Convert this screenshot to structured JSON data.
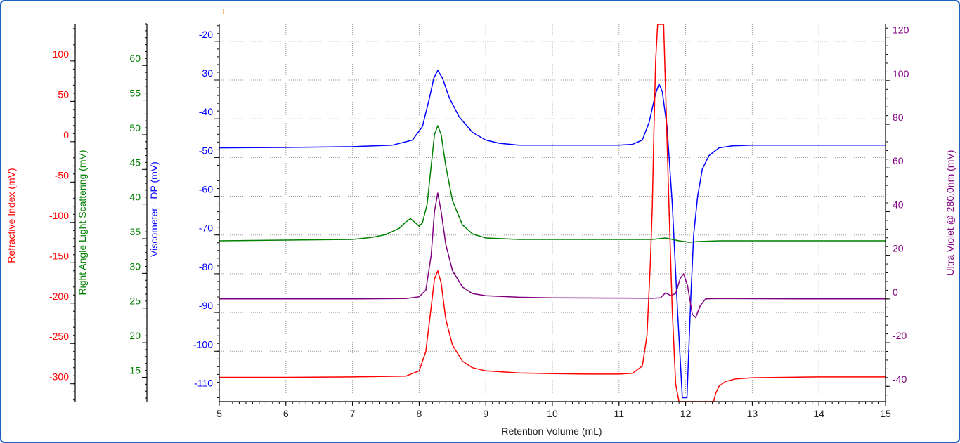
{
  "colors": {
    "refractive_index": "#ff0000",
    "right_angle_light_scattering": "#008000",
    "viscometer": "#0000ff",
    "ultra_violet": "#800080",
    "frame": "#1f5fbf",
    "grid": "#9a9a9a"
  },
  "chart_data": {
    "type": "line",
    "title": "",
    "grid": true,
    "xlabel": "Retention Volume (mL)",
    "xlim": [
      5,
      15
    ],
    "x_ticks": [
      5,
      6,
      7,
      8,
      9,
      10,
      11,
      12,
      13,
      14,
      15
    ],
    "axes": {
      "refractive_index": {
        "label": "Refractive Index (mV)",
        "ticks": [
          100,
          50,
          0,
          -50,
          -100,
          -150,
          -200,
          -250,
          -300
        ],
        "ylim": [
          -322,
          146
        ]
      },
      "right_angle_light_scattering": {
        "label": "Right Angle Light Scattering (mV)",
        "ticks": [
          60,
          55,
          50,
          45,
          40,
          35,
          30,
          25,
          20,
          15
        ],
        "ylim": [
          11.5,
          66
        ]
      },
      "viscometer": {
        "label": "Viscometer - DP (mV)",
        "ticks": [
          -20,
          -30,
          -40,
          -50,
          -60,
          -70,
          -80,
          -90,
          -100,
          -110
        ],
        "ylim": [
          -113,
          -15.5
        ]
      },
      "ultra_violet": {
        "label": "Ultra Violet @ 280.0nm (mV)",
        "ticks": [
          120,
          100,
          80,
          60,
          40,
          20,
          0,
          -20,
          -40
        ],
        "ylim": [
          -47,
          126
        ]
      }
    },
    "series": [
      {
        "key": "viscometer",
        "x": [
          5.0,
          6.0,
          7.0,
          7.6,
          7.9,
          8.05,
          8.15,
          8.22,
          8.28,
          8.35,
          8.45,
          8.6,
          8.8,
          9.0,
          9.2,
          9.5,
          10.0,
          10.5,
          11.0,
          11.2,
          11.35,
          11.45,
          11.55,
          11.6,
          11.65,
          11.72,
          11.8,
          11.88,
          11.95,
          12.02,
          12.08,
          12.12,
          12.18,
          12.25,
          12.35,
          12.5,
          12.7,
          13.0,
          14.0,
          15.0
        ],
        "y": [
          -47.5,
          -47.4,
          -47.2,
          -46.8,
          -45.5,
          -42.0,
          -35.0,
          -29.5,
          -27.5,
          -29.5,
          -34.5,
          -39.5,
          -43.5,
          -45.5,
          -46.3,
          -46.8,
          -46.8,
          -46.8,
          -46.8,
          -46.6,
          -45.5,
          -41.0,
          -33.5,
          -31.0,
          -33.0,
          -42.0,
          -62.0,
          -90.0,
          -112.0,
          -112.0,
          -85.0,
          -70.0,
          -60.0,
          -53.0,
          -49.5,
          -47.5,
          -47.0,
          -46.8,
          -46.8,
          -46.8
        ]
      },
      {
        "key": "right_angle_light_scattering",
        "x": [
          5.0,
          6.0,
          7.0,
          7.3,
          7.5,
          7.7,
          7.8,
          7.87,
          7.93,
          8.0,
          8.05,
          8.12,
          8.18,
          8.23,
          8.28,
          8.33,
          8.4,
          8.5,
          8.65,
          8.8,
          9.0,
          9.5,
          10.0,
          11.0,
          11.5,
          11.7,
          11.9,
          12.05,
          12.2,
          12.5,
          13.0,
          14.0,
          15.0
        ],
        "y": [
          34.7,
          34.8,
          34.9,
          35.2,
          35.6,
          36.5,
          37.4,
          37.9,
          37.4,
          36.8,
          37.3,
          40.0,
          45.5,
          50.0,
          51.3,
          50.0,
          45.5,
          40.5,
          37.0,
          35.7,
          35.1,
          34.9,
          34.9,
          34.9,
          34.9,
          35.1,
          34.7,
          34.5,
          34.6,
          34.7,
          34.7,
          34.7,
          34.7
        ]
      },
      {
        "key": "ultra_violet",
        "x": [
          5.0,
          6.0,
          7.0,
          7.8,
          8.0,
          8.1,
          8.18,
          8.23,
          8.28,
          8.33,
          8.4,
          8.5,
          8.65,
          8.8,
          9.0,
          9.5,
          10.0,
          11.0,
          11.5,
          11.62,
          11.7,
          11.78,
          11.85,
          11.92,
          11.97,
          12.03,
          12.1,
          12.15,
          12.22,
          12.3,
          12.5,
          13.0,
          14.0,
          15.0
        ],
        "y": [
          0.0,
          0.0,
          0.0,
          0.2,
          1.0,
          4.0,
          20.0,
          40.0,
          48.5,
          40.0,
          25.0,
          13.0,
          5.5,
          2.5,
          1.5,
          0.8,
          0.5,
          0.4,
          0.3,
          0.5,
          2.8,
          1.5,
          2.5,
          9.5,
          11.5,
          6.0,
          -7.0,
          -8.5,
          -3.0,
          0.0,
          0.2,
          0.1,
          0.0,
          0.0
        ]
      },
      {
        "key": "refractive_index",
        "x": [
          5.0,
          6.0,
          7.0,
          7.8,
          8.0,
          8.1,
          8.18,
          8.23,
          8.28,
          8.33,
          8.4,
          8.5,
          8.65,
          8.8,
          9.0,
          9.5,
          10.0,
          10.5,
          11.0,
          11.2,
          11.35,
          11.42,
          11.47,
          11.5,
          11.52,
          11.55,
          11.58,
          11.61,
          11.64,
          11.67,
          11.7,
          11.75,
          11.8,
          11.85,
          11.9,
          12.42,
          12.45,
          12.5,
          12.6,
          12.75,
          13.0,
          13.5,
          14.0,
          15.0
        ],
        "y": [
          -292.0,
          -292.0,
          -291.5,
          -290.5,
          -284.0,
          -260.0,
          -205.0,
          -170.0,
          -160.0,
          -175.0,
          -220.0,
          -252.0,
          -272.0,
          -280.0,
          -284.0,
          -286.5,
          -287.5,
          -288.0,
          -288.0,
          -287.0,
          -278.0,
          -240.0,
          -150.0,
          -80.0,
          0.0,
          100.0,
          146.0,
          146.0,
          146.0,
          146.0,
          60.0,
          -80.0,
          -210.0,
          -300.0,
          -322.0,
          -322.0,
          -312.0,
          -303.0,
          -297.0,
          -294.0,
          -292.5,
          -292.0,
          -291.5,
          -291.5
        ]
      }
    ],
    "annotations": []
  }
}
